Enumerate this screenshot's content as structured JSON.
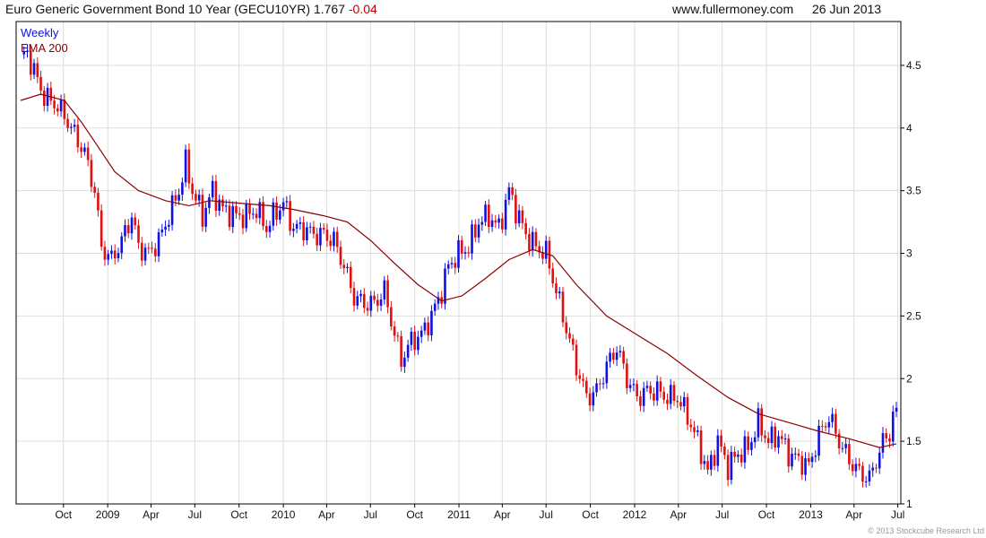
{
  "header": {
    "title": "Euro Generic Government Bond 10 Year (GECU10YR)",
    "last": "1.767",
    "change": "-0.04",
    "site": "www.fullermoney.com",
    "date": "26 Jun 2013"
  },
  "copyright": "© 2013 Stockcube Research Ltd",
  "colors": {
    "up": "#1010e0",
    "down": "#e01010",
    "ema": "#8b0000",
    "grid": "#dddddd"
  },
  "chart_data": {
    "type": "candlestick",
    "interval_label": "Weekly",
    "overlay_label": "EMA 200",
    "ylim": [
      1.0,
      4.85
    ],
    "y_ticks": [
      1,
      1.5,
      2,
      2.5,
      3,
      3.5,
      4,
      4.5
    ],
    "y_tick_labels": [
      "1",
      "1.5",
      "2",
      "2.5",
      "3",
      "3.5",
      "4",
      "4.5"
    ],
    "x_range": [
      "2008-07-04",
      "2013-06-28"
    ],
    "x_ticks": [
      {
        "date": "2008-10-01",
        "label": "Oct"
      },
      {
        "date": "2009-01-01",
        "label": "2009"
      },
      {
        "date": "2009-04-01",
        "label": "Apr"
      },
      {
        "date": "2009-07-01",
        "label": "Jul"
      },
      {
        "date": "2009-10-01",
        "label": "Oct"
      },
      {
        "date": "2010-01-01",
        "label": "2010"
      },
      {
        "date": "2010-04-01",
        "label": "Apr"
      },
      {
        "date": "2010-07-01",
        "label": "Jul"
      },
      {
        "date": "2010-10-01",
        "label": "Oct"
      },
      {
        "date": "2011-01-01",
        "label": "2011"
      },
      {
        "date": "2011-04-01",
        "label": "Apr"
      },
      {
        "date": "2011-07-01",
        "label": "Jul"
      },
      {
        "date": "2011-10-01",
        "label": "Oct"
      },
      {
        "date": "2012-01-01",
        "label": "2012"
      },
      {
        "date": "2012-04-01",
        "label": "Apr"
      },
      {
        "date": "2012-07-01",
        "label": "Jul"
      },
      {
        "date": "2012-10-01",
        "label": "Oct"
      },
      {
        "date": "2013-01-01",
        "label": "2013"
      },
      {
        "date": "2013-04-01",
        "label": "Apr"
      },
      {
        "date": "2013-07-01",
        "label": "Jul"
      }
    ],
    "close_path": [
      [
        "2008-07-04",
        4.55
      ],
      [
        "2008-07-18",
        4.6
      ],
      [
        "2008-08-01",
        4.45
      ],
      [
        "2008-08-22",
        4.25
      ],
      [
        "2008-09-12",
        4.2
      ],
      [
        "2008-10-03",
        4.1
      ],
      [
        "2008-10-24",
        3.95
      ],
      [
        "2008-11-14",
        3.8
      ],
      [
        "2008-12-05",
        3.5
      ],
      [
        "2008-12-19",
        3.05
      ],
      [
        "2009-01-09",
        2.95
      ],
      [
        "2009-01-30",
        3.1
      ],
      [
        "2009-02-20",
        3.3
      ],
      [
        "2009-03-06",
        3.05
      ],
      [
        "2009-03-27",
        3.0
      ],
      [
        "2009-04-17",
        3.1
      ],
      [
        "2009-05-08",
        3.3
      ],
      [
        "2009-05-29",
        3.5
      ],
      [
        "2009-06-12",
        3.72
      ],
      [
        "2009-06-26",
        3.5
      ],
      [
        "2009-07-17",
        3.3
      ],
      [
        "2009-08-07",
        3.5
      ],
      [
        "2009-08-28",
        3.35
      ],
      [
        "2009-09-25",
        3.3
      ],
      [
        "2009-10-16",
        3.3
      ],
      [
        "2009-11-06",
        3.35
      ],
      [
        "2009-11-27",
        3.2
      ],
      [
        "2009-12-11",
        3.3
      ],
      [
        "2010-01-01",
        3.4
      ],
      [
        "2010-01-22",
        3.2
      ],
      [
        "2010-02-12",
        3.2
      ],
      [
        "2010-03-05",
        3.15
      ],
      [
        "2010-03-26",
        3.15
      ],
      [
        "2010-04-16",
        3.1
      ],
      [
        "2010-05-07",
        2.9
      ],
      [
        "2010-05-28",
        2.65
      ],
      [
        "2010-06-18",
        2.6
      ],
      [
        "2010-07-09",
        2.6
      ],
      [
        "2010-07-30",
        2.7
      ],
      [
        "2010-08-20",
        2.35
      ],
      [
        "2010-09-03",
        2.15
      ],
      [
        "2010-09-24",
        2.3
      ],
      [
        "2010-10-15",
        2.35
      ],
      [
        "2010-11-05",
        2.5
      ],
      [
        "2010-11-26",
        2.7
      ],
      [
        "2010-12-10",
        2.9
      ],
      [
        "2010-12-31",
        3.0
      ],
      [
        "2011-01-21",
        3.05
      ],
      [
        "2011-02-11",
        3.25
      ],
      [
        "2011-03-04",
        3.3
      ],
      [
        "2011-03-25",
        3.2
      ],
      [
        "2011-04-15",
        3.5
      ],
      [
        "2011-04-29",
        3.35
      ],
      [
        "2011-05-20",
        3.15
      ],
      [
        "2011-06-10",
        3.05
      ],
      [
        "2011-07-01",
        3.0
      ],
      [
        "2011-07-22",
        2.7
      ],
      [
        "2011-08-12",
        2.4
      ],
      [
        "2011-09-02",
        2.1
      ],
      [
        "2011-09-23",
        1.85
      ],
      [
        "2011-10-14",
        1.9
      ],
      [
        "2011-11-04",
        2.1
      ],
      [
        "2011-11-25",
        2.25
      ],
      [
        "2011-12-16",
        2.0
      ],
      [
        "2012-01-06",
        1.85
      ],
      [
        "2012-01-27",
        1.9
      ],
      [
        "2012-02-17",
        1.9
      ],
      [
        "2012-03-09",
        1.85
      ],
      [
        "2012-03-30",
        1.85
      ],
      [
        "2012-04-20",
        1.7
      ],
      [
        "2012-05-11",
        1.5
      ],
      [
        "2012-06-01",
        1.25
      ],
      [
        "2012-06-22",
        1.5
      ],
      [
        "2012-07-13",
        1.3
      ],
      [
        "2012-08-03",
        1.4
      ],
      [
        "2012-08-24",
        1.45
      ],
      [
        "2012-09-14",
        1.65
      ],
      [
        "2012-10-05",
        1.5
      ],
      [
        "2012-10-26",
        1.55
      ],
      [
        "2012-11-16",
        1.4
      ],
      [
        "2012-12-07",
        1.35
      ],
      [
        "2012-12-28",
        1.3
      ],
      [
        "2013-01-18",
        1.55
      ],
      [
        "2013-02-08",
        1.7
      ],
      [
        "2013-03-01",
        1.5
      ],
      [
        "2013-03-22",
        1.35
      ],
      [
        "2013-04-12",
        1.25
      ],
      [
        "2013-05-03",
        1.2
      ],
      [
        "2013-05-24",
        1.42
      ],
      [
        "2013-06-07",
        1.55
      ],
      [
        "2013-06-14",
        1.55
      ],
      [
        "2013-06-21",
        1.72
      ],
      [
        "2013-06-28",
        1.767
      ]
    ],
    "ema_path": [
      [
        "2008-07-04",
        4.22
      ],
      [
        "2008-08-15",
        4.27
      ],
      [
        "2008-10-03",
        4.22
      ],
      [
        "2008-11-07",
        4.05
      ],
      [
        "2008-12-12",
        3.85
      ],
      [
        "2009-01-16",
        3.65
      ],
      [
        "2009-03-06",
        3.5
      ],
      [
        "2009-05-01",
        3.42
      ],
      [
        "2009-06-19",
        3.38
      ],
      [
        "2009-07-31",
        3.42
      ],
      [
        "2009-10-02",
        3.4
      ],
      [
        "2009-12-04",
        3.38
      ],
      [
        "2010-01-22",
        3.35
      ],
      [
        "2010-03-26",
        3.3
      ],
      [
        "2010-05-14",
        3.25
      ],
      [
        "2010-07-02",
        3.1
      ],
      [
        "2010-08-20",
        2.92
      ],
      [
        "2010-10-08",
        2.75
      ],
      [
        "2010-11-26",
        2.62
      ],
      [
        "2011-01-07",
        2.66
      ],
      [
        "2011-02-25",
        2.8
      ],
      [
        "2011-04-15",
        2.95
      ],
      [
        "2011-06-03",
        3.03
      ],
      [
        "2011-07-15",
        2.98
      ],
      [
        "2011-09-02",
        2.75
      ],
      [
        "2011-11-04",
        2.5
      ],
      [
        "2012-01-06",
        2.35
      ],
      [
        "2012-03-09",
        2.2
      ],
      [
        "2012-05-11",
        2.02
      ],
      [
        "2012-07-13",
        1.85
      ],
      [
        "2012-09-14",
        1.72
      ],
      [
        "2012-11-16",
        1.65
      ],
      [
        "2013-01-18",
        1.58
      ],
      [
        "2013-03-22",
        1.52
      ],
      [
        "2013-05-24",
        1.45
      ],
      [
        "2013-06-28",
        1.48
      ]
    ]
  }
}
